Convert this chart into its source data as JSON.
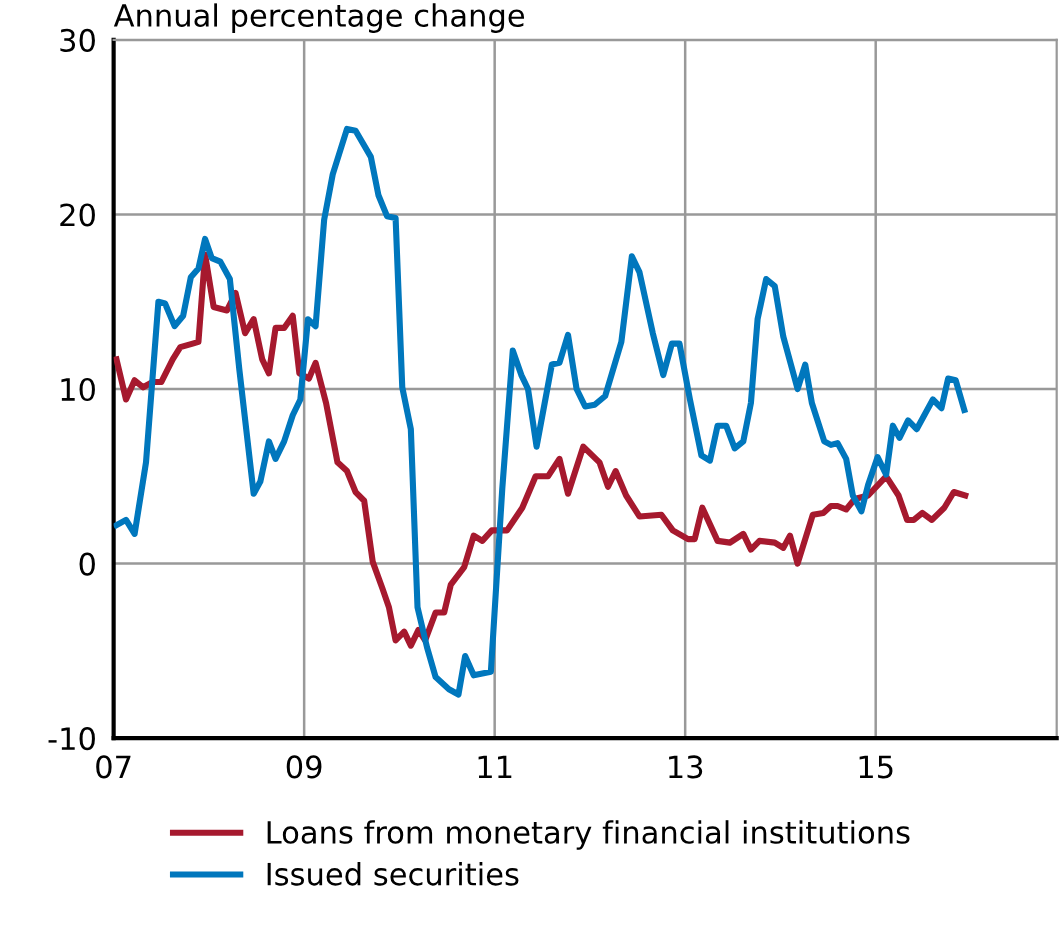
{
  "chart_data": {
    "type": "line",
    "ylabel": "Annual percentage change",
    "xlim": [
      2007,
      2016.9
    ],
    "xticks": [
      {
        "value": 2007,
        "label": "07"
      },
      {
        "value": 2009,
        "label": "09"
      },
      {
        "value": 2011,
        "label": "11"
      },
      {
        "value": 2013,
        "label": "13"
      },
      {
        "value": 2015,
        "label": "15"
      }
    ],
    "ylim": [
      -10,
      30
    ],
    "yticks": [
      -10,
      0,
      10,
      20,
      30
    ],
    "grid": true,
    "legend": "bottom",
    "line_style": "solid",
    "marker": "none",
    "series": [
      {
        "name": "Loans from monetary financial institutions",
        "color": "#a6192e",
        "x": [
          2007.03,
          2007.13,
          2007.22,
          2007.31,
          2007.41,
          2007.5,
          2007.62,
          2007.7,
          2007.83,
          2007.89,
          2007.96,
          2008.05,
          2008.19,
          2008.28,
          2008.38,
          2008.47,
          2008.56,
          2008.63,
          2008.7,
          2008.79,
          2008.88,
          2008.95,
          2009.05,
          2009.12,
          2009.23,
          2009.35,
          2009.45,
          2009.54,
          2009.63,
          2009.72,
          2009.82,
          2009.89,
          2009.96,
          2010.05,
          2010.12,
          2010.2,
          2010.27,
          2010.38,
          2010.47,
          2010.54,
          2010.68,
          2010.78,
          2010.87,
          2010.97,
          2011.13,
          2011.29,
          2011.43,
          2011.56,
          2011.68,
          2011.77,
          2011.93,
          2012.1,
          2012.19,
          2012.27,
          2012.38,
          2012.52,
          2012.75,
          2012.87,
          2013.03,
          2013.1,
          2013.18,
          2013.34,
          2013.47,
          2013.61,
          2013.69,
          2013.78,
          2013.94,
          2014.03,
          2014.1,
          2014.18,
          2014.34,
          2014.45,
          2014.53,
          2014.6,
          2014.69,
          2014.78,
          2014.92,
          2015.11,
          2015.24,
          2015.33,
          2015.4,
          2015.49,
          2015.59,
          2015.72,
          2015.82,
          2015.94
        ],
        "values": [
          11.7,
          9.4,
          10.5,
          10.1,
          10.4,
          10.4,
          11.7,
          12.4,
          12.6,
          12.7,
          17.7,
          14.7,
          14.5,
          15.5,
          13.2,
          14.0,
          11.7,
          10.9,
          13.5,
          13.5,
          14.2,
          10.9,
          10.6,
          11.5,
          9.2,
          5.8,
          5.3,
          4.1,
          3.6,
          0.1,
          -1.4,
          -2.5,
          -4.4,
          -3.9,
          -4.7,
          -3.8,
          -4.4,
          -2.8,
          -2.8,
          -1.2,
          -0.2,
          1.6,
          1.3,
          1.9,
          1.9,
          3.2,
          5.0,
          5.0,
          6.0,
          4.0,
          6.7,
          5.8,
          4.4,
          5.3,
          3.9,
          2.7,
          2.8,
          1.9,
          1.4,
          1.4,
          3.2,
          1.3,
          1.2,
          1.7,
          0.8,
          1.3,
          1.2,
          0.9,
          1.6,
          0.0,
          2.8,
          2.9,
          3.3,
          3.3,
          3.1,
          3.7,
          3.9,
          5.0,
          3.9,
          2.5,
          2.5,
          2.9,
          2.5,
          3.2,
          4.1,
          3.9
        ]
      },
      {
        "name": "Issued securities",
        "color": "#0077bd",
        "x": [
          2007.03,
          2007.13,
          2007.22,
          2007.34,
          2007.47,
          2007.54,
          2007.64,
          2007.73,
          2007.81,
          2007.89,
          2007.96,
          2008.03,
          2008.12,
          2008.22,
          2008.32,
          2008.47,
          2008.54,
          2008.63,
          2008.7,
          2008.79,
          2008.88,
          2008.96,
          2009.04,
          2009.12,
          2009.21,
          2009.3,
          2009.45,
          2009.54,
          2009.7,
          2009.78,
          2009.87,
          2009.96,
          2010.03,
          2010.12,
          2010.19,
          2010.29,
          2010.38,
          2010.52,
          2010.62,
          2010.69,
          2010.78,
          2010.96,
          2011.08,
          2011.19,
          2011.28,
          2011.35,
          2011.44,
          2011.6,
          2011.68,
          2011.77,
          2011.86,
          2011.95,
          2012.05,
          2012.16,
          2012.33,
          2012.44,
          2012.52,
          2012.66,
          2012.77,
          2012.86,
          2012.94,
          2013.05,
          2013.17,
          2013.26,
          2013.34,
          2013.43,
          2013.52,
          2013.61,
          2013.69,
          2013.76,
          2013.85,
          2013.94,
          2014.03,
          2014.18,
          2014.26,
          2014.33,
          2014.46,
          2014.53,
          2014.6,
          2014.69,
          2014.76,
          2014.85,
          2014.92,
          2015.02,
          2015.11,
          2015.18,
          2015.25,
          2015.34,
          2015.43,
          2015.51,
          2015.6,
          2015.69,
          2015.76,
          2015.84,
          2015.93
        ],
        "values": [
          2.2,
          2.5,
          1.7,
          5.8,
          15.0,
          14.9,
          13.6,
          14.2,
          16.4,
          16.9,
          18.6,
          17.5,
          17.3,
          16.3,
          11.1,
          4.0,
          4.7,
          7.0,
          6.0,
          7.0,
          8.5,
          9.4,
          14.0,
          13.6,
          19.7,
          22.3,
          24.9,
          24.8,
          23.3,
          21.1,
          19.9,
          19.8,
          10.1,
          7.7,
          -2.5,
          -4.8,
          -6.5,
          -7.2,
          -7.5,
          -5.3,
          -6.4,
          -6.2,
          4.3,
          12.2,
          10.8,
          10.0,
          6.7,
          11.4,
          11.5,
          13.1,
          10.0,
          9.0,
          9.1,
          9.6,
          12.7,
          17.6,
          16.7,
          13.2,
          10.8,
          12.6,
          12.6,
          9.4,
          6.2,
          5.9,
          7.9,
          7.9,
          6.6,
          7.0,
          9.2,
          14.0,
          16.3,
          15.9,
          13.0,
          10.0,
          11.4,
          9.2,
          7.0,
          6.8,
          6.9,
          6.0,
          3.9,
          3.0,
          4.5,
          6.1,
          5.1,
          7.9,
          7.2,
          8.2,
          7.7,
          8.5,
          9.4,
          8.9,
          10.6,
          10.5,
          8.8
        ]
      }
    ]
  }
}
